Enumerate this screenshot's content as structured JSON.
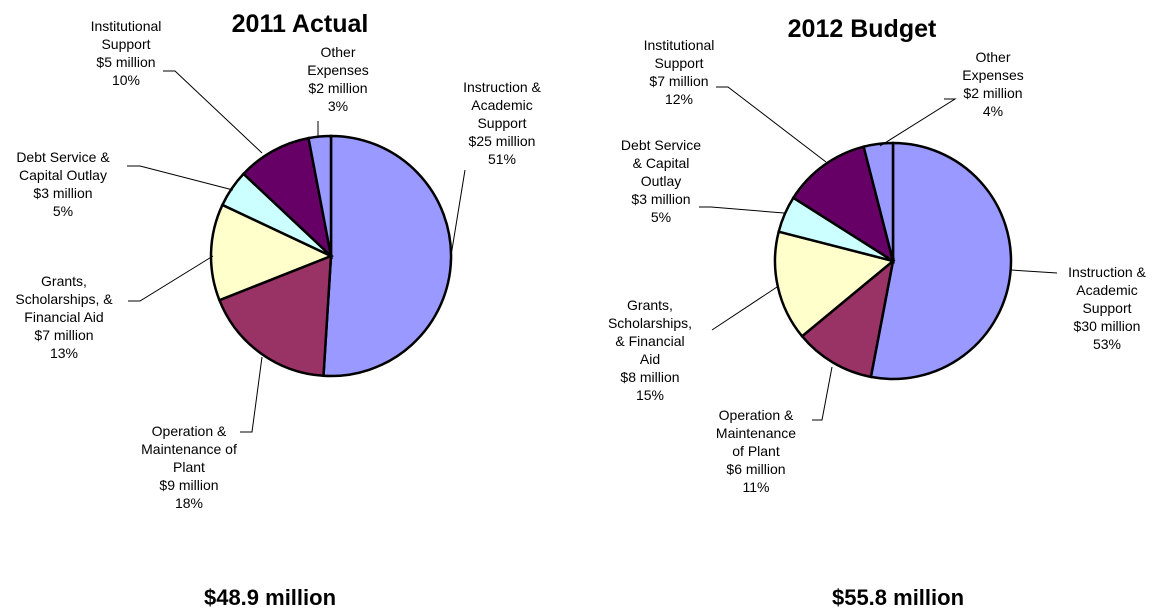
{
  "chart_data": [
    {
      "type": "pie",
      "title": "2011 Actual",
      "total": "$48.9 million",
      "slices": [
        {
          "lines": [
            "Instruction &",
            "Academic",
            "Support",
            "$25 million",
            "51%"
          ],
          "value": 25,
          "percent": 51,
          "color": "#9999ff"
        },
        {
          "lines": [
            "Operation &",
            "Maintenance of",
            "Plant",
            "$9 million",
            "18%"
          ],
          "value": 9,
          "percent": 18,
          "color": "#993366"
        },
        {
          "lines": [
            "Grants,",
            "Scholarships, &",
            "Financial Aid",
            "$7 million",
            "13%"
          ],
          "value": 7,
          "percent": 13,
          "color": "#ffffcc"
        },
        {
          "lines": [
            "Debt Service &",
            "Capital Outlay",
            "$3 million",
            "5%"
          ],
          "value": 3,
          "percent": 5,
          "color": "#ccffff"
        },
        {
          "lines": [
            "Institutional",
            "Support",
            "$5 million",
            "10%"
          ],
          "value": 5,
          "percent": 10,
          "color": "#660066"
        },
        {
          "lines": [
            "Other",
            "Expenses",
            "$2 million",
            "3%"
          ],
          "value": 2,
          "percent": 3,
          "color": "#9999ff"
        }
      ]
    },
    {
      "type": "pie",
      "title": "2012 Budget",
      "total": "$55.8 million",
      "slices": [
        {
          "lines": [
            "Instruction &",
            "Academic",
            "Support",
            "$30 million",
            "53%"
          ],
          "value": 30,
          "percent": 53,
          "color": "#9999ff"
        },
        {
          "lines": [
            "Operation &",
            "Maintenance",
            "of Plant",
            "$6 million",
            "11%"
          ],
          "value": 6,
          "percent": 11,
          "color": "#993366"
        },
        {
          "lines": [
            "Grants,",
            "Scholarships,",
            "& Financial",
            "Aid",
            "$8 million",
            "15%"
          ],
          "value": 8,
          "percent": 15,
          "color": "#ffffcc"
        },
        {
          "lines": [
            "Debt Service",
            "& Capital",
            "Outlay",
            "$3 million",
            "5%"
          ],
          "value": 3,
          "percent": 5,
          "color": "#ccffff"
        },
        {
          "lines": [
            "Institutional",
            "Support",
            "$7 million",
            "12%"
          ],
          "value": 7,
          "percent": 12,
          "color": "#660066"
        },
        {
          "lines": [
            "Other",
            "Expenses",
            "$2 million",
            "4%"
          ],
          "value": 2,
          "percent": 4,
          "color": "#9999ff"
        }
      ]
    }
  ]
}
